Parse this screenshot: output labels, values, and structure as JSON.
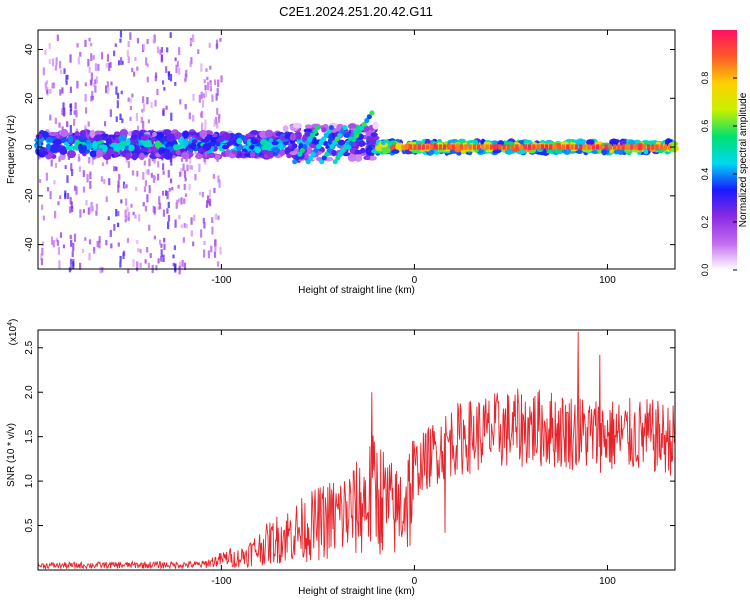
{
  "title": "C2E1.2024.251.20.42.G11",
  "colors": {
    "frame": "#000000",
    "snr_line": "#e8232a",
    "background": "#ffffff"
  },
  "chart_data": [
    {
      "type": "heatmap",
      "title": "C2E1.2024.251.20.42.G11",
      "xlabel": "Height of straight line (km)",
      "ylabel": "Frequency (Hz)",
      "xlim": [
        -195,
        135
      ],
      "ylim": [
        -50,
        48
      ],
      "x_ticks": [
        -100,
        0,
        100
      ],
      "y_ticks": [
        -40,
        -20,
        0,
        20,
        40
      ],
      "grid": false,
      "colorbar": {
        "label": "Normalized spectral amplitude",
        "range": [
          0,
          1
        ],
        "ticks": [
          "0.0",
          "0.2",
          "0.4",
          "0.6",
          "0.8"
        ],
        "colors": [
          "#ffffff",
          "#c46cf0",
          "#8a2be2",
          "#1a1aff",
          "#00d8f0",
          "#00e070",
          "#c8f000",
          "#ffd000",
          "#ff5a2a",
          "#ff1060"
        ]
      },
      "bands": [
        {
          "x_range": [
            -195,
            -68
          ],
          "freq_center": 1,
          "freq_halfwidth": 5,
          "amplitude": 0.45
        },
        {
          "x_range": [
            -68,
            -20
          ],
          "freq_center": 2,
          "freq_halfwidth": 7,
          "amplitude": 0.35
        },
        {
          "x_range": [
            -20,
            135
          ],
          "freq_center": 0,
          "freq_halfwidth": 2,
          "amplitude": 0.9
        }
      ],
      "scatter_region": {
        "x_range": [
          -195,
          -100
        ],
        "freq_range": [
          -50,
          48
        ],
        "amplitude": 0.15
      }
    },
    {
      "type": "line",
      "xlabel": "Height of straight line (km)",
      "ylabel": "SNR (10 * v/v)",
      "y_multiplier": "(x10",
      "y_multiplier_exp": "4",
      "y_multiplier_close": ")",
      "xlim": [
        -195,
        135
      ],
      "ylim": [
        0,
        2.7
      ],
      "x_ticks": [
        -100,
        0,
        100
      ],
      "y_ticks": [
        "0.5",
        "1.0",
        "1.5",
        "2.0",
        "2.5"
      ],
      "y_tick_values": [
        0.5,
        1.0,
        1.5,
        2.0,
        2.5
      ],
      "grid": false,
      "series": [
        {
          "envelope": [
            {
              "x": -195,
              "y": 0.05
            },
            {
              "x": -110,
              "y": 0.06
            },
            {
              "x": -90,
              "y": 0.18
            },
            {
              "x": -70,
              "y": 0.45
            },
            {
              "x": -50,
              "y": 0.65
            },
            {
              "x": -30,
              "y": 0.85
            },
            {
              "x": -20,
              "y": 1.1
            },
            {
              "x": -10,
              "y": 0.8
            },
            {
              "x": 0,
              "y": 1.15
            },
            {
              "x": 10,
              "y": 1.35
            },
            {
              "x": 20,
              "y": 1.5
            },
            {
              "x": 40,
              "y": 1.6
            },
            {
              "x": 60,
              "y": 1.65
            },
            {
              "x": 80,
              "y": 1.6
            },
            {
              "x": 100,
              "y": 1.55
            },
            {
              "x": 120,
              "y": 1.55
            },
            {
              "x": 135,
              "y": 1.5
            }
          ],
          "peaks": [
            {
              "x": -22,
              "y": 2.0
            },
            {
              "x": 85,
              "y": 2.68
            },
            {
              "x": 96,
              "y": 2.42
            },
            {
              "x": 16,
              "y": 0.42
            }
          ]
        }
      ]
    }
  ]
}
